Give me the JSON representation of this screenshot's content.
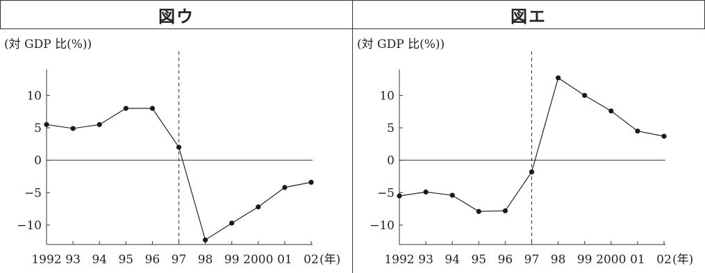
{
  "chart_data": [
    {
      "type": "line",
      "title": "図ウ",
      "ylabel": "(対 GDP 比(%))",
      "xlabel": "(年)",
      "x": [
        1992,
        1993,
        1994,
        1995,
        1996,
        1997,
        1998,
        1999,
        2000,
        2001,
        2002
      ],
      "x_tick_labels": [
        "1992",
        "93",
        "94",
        "95",
        "96",
        "97",
        "98",
        "99",
        "2000",
        "01",
        "02"
      ],
      "values": [
        5.5,
        4.9,
        5.5,
        8.0,
        8.0,
        2.0,
        -12.3,
        -9.7,
        -7.2,
        -4.2,
        -3.4
      ],
      "ylim": [
        -13,
        14
      ],
      "y_ticks": [
        10,
        5,
        0,
        -5,
        -10
      ],
      "y_tick_labels": [
        "10",
        "5",
        "0",
        "−5",
        "−10"
      ],
      "reference_line_x": 1997,
      "grid": false
    },
    {
      "type": "line",
      "title": "図エ",
      "ylabel": "(対 GDP 比(%))",
      "xlabel": "(年)",
      "x": [
        1992,
        1993,
        1994,
        1995,
        1996,
        1997,
        1998,
        1999,
        2000,
        2001,
        2002
      ],
      "x_tick_labels": [
        "1992",
        "93",
        "94",
        "95",
        "96",
        "97",
        "98",
        "99",
        "2000",
        "01",
        "02"
      ],
      "values": [
        -5.5,
        -4.9,
        -5.4,
        -7.9,
        -7.8,
        -1.8,
        12.7,
        10.0,
        7.6,
        4.5,
        3.7
      ],
      "ylim": [
        -13,
        14
      ],
      "y_ticks": [
        10,
        5,
        0,
        -5,
        -10
      ],
      "y_tick_labels": [
        "10",
        "5",
        "0",
        "−5",
        "−10"
      ],
      "reference_line_x": 1997,
      "grid": false
    }
  ]
}
